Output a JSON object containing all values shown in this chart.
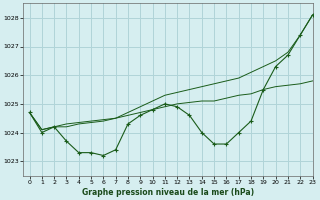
{
  "xlabel": "Graphe pression niveau de la mer (hPa)",
  "xlim": [
    -0.5,
    23
  ],
  "ylim": [
    1022.5,
    1028.5
  ],
  "yticks": [
    1023,
    1024,
    1025,
    1026,
    1027,
    1028
  ],
  "xticks": [
    0,
    1,
    2,
    3,
    4,
    5,
    6,
    7,
    8,
    9,
    10,
    11,
    12,
    13,
    14,
    15,
    16,
    17,
    18,
    19,
    20,
    21,
    22,
    23
  ],
  "background_color": "#d6eef0",
  "grid_color": "#b0d4d8",
  "line_color": "#1a5c1a",
  "series1_wavy": {
    "x": [
      0,
      1,
      2,
      3,
      4,
      5,
      6,
      7,
      8,
      9,
      10,
      11,
      12,
      13,
      14,
      15,
      16,
      17,
      18,
      19,
      20,
      21,
      22,
      23
    ],
    "y": [
      1024.7,
      1024.0,
      1024.2,
      1023.7,
      1023.3,
      1023.3,
      1023.2,
      1023.4,
      1024.3,
      1024.6,
      1024.8,
      1025.0,
      1024.9,
      1024.6,
      1024.0,
      1023.6,
      1023.6,
      1024.0,
      1024.4,
      1025.5,
      1026.3,
      1026.7,
      1027.4,
      1028.1
    ]
  },
  "series2_steep": {
    "x": [
      0,
      1,
      2,
      3,
      4,
      5,
      6,
      7,
      8,
      9,
      10,
      11,
      12,
      13,
      14,
      15,
      16,
      17,
      18,
      19,
      20,
      21,
      22,
      23
    ],
    "y": [
      1024.7,
      1024.1,
      1024.2,
      1024.2,
      1024.3,
      1024.35,
      1024.4,
      1024.5,
      1024.7,
      1024.9,
      1025.1,
      1025.3,
      1025.4,
      1025.5,
      1025.6,
      1025.7,
      1025.8,
      1025.9,
      1026.1,
      1026.3,
      1026.5,
      1026.8,
      1027.4,
      1028.1
    ]
  },
  "series3_gentle": {
    "x": [
      0,
      1,
      2,
      3,
      4,
      5,
      6,
      7,
      8,
      9,
      10,
      11,
      12,
      13,
      14,
      15,
      16,
      17,
      18,
      19,
      20,
      21,
      22,
      23
    ],
    "y": [
      1024.7,
      1024.1,
      1024.2,
      1024.3,
      1024.35,
      1024.4,
      1024.45,
      1024.5,
      1024.6,
      1024.7,
      1024.8,
      1024.9,
      1025.0,
      1025.05,
      1025.1,
      1025.1,
      1025.2,
      1025.3,
      1025.35,
      1025.5,
      1025.6,
      1025.65,
      1025.7,
      1025.8
    ]
  }
}
